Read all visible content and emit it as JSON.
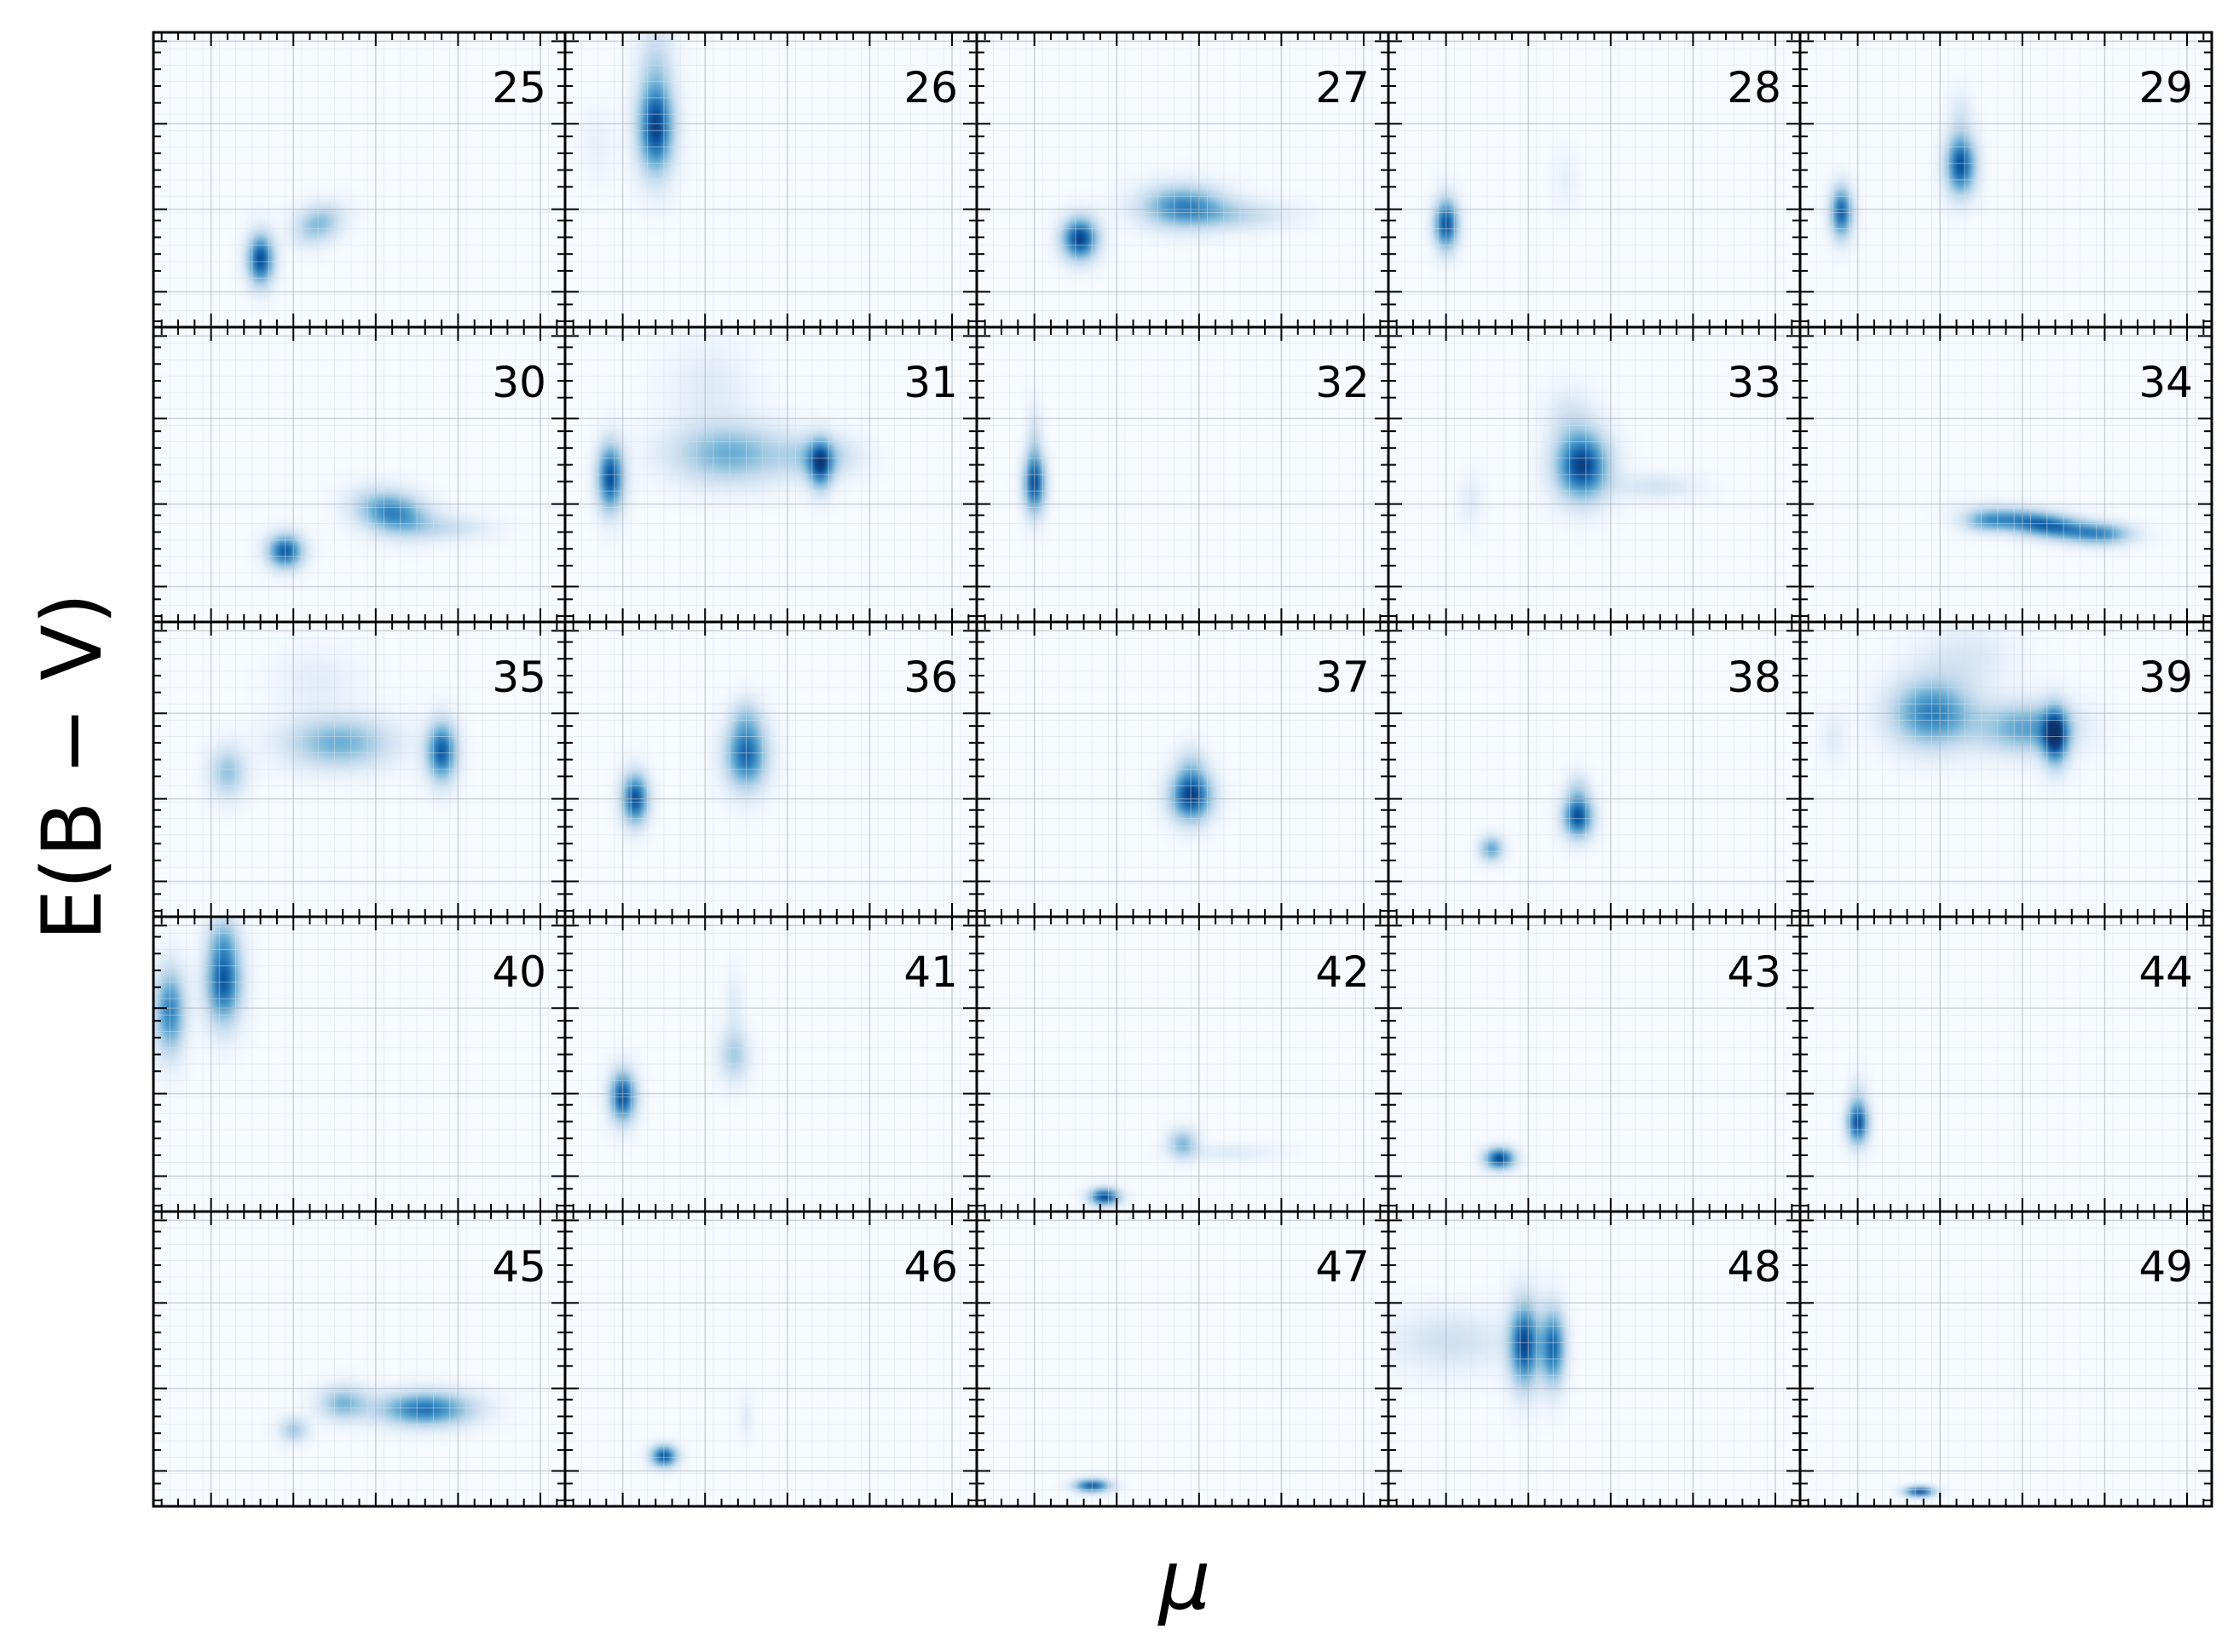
{
  "figure": {
    "xlabel": "μ",
    "ylabel": "E(B − V)"
  },
  "chart_data": {
    "type": "heatmap",
    "layout": {
      "rows": 5,
      "cols": 5
    },
    "xlabel": "μ",
    "ylabel": "E(B − V)",
    "colormap": "Blues",
    "grid": true,
    "tick_labels_shown": false,
    "axis_units": "normalized 0-1 within each panel (x: μ left to right, y: E(B−V) bottom to top); no tick values are printed",
    "panels": [
      {
        "label": "25",
        "blobs": [
          {
            "x": 0.26,
            "y": 0.23,
            "sx": 0.022,
            "sy": 0.06,
            "a": 0.92
          },
          {
            "x": 0.4,
            "y": 0.35,
            "sx": 0.04,
            "sy": 0.045,
            "a": 0.45,
            "tilt": 0.3
          }
        ]
      },
      {
        "label": "26",
        "blobs": [
          {
            "x": 0.22,
            "y": 0.68,
            "sx": 0.03,
            "sy": 0.11,
            "a": 0.95
          },
          {
            "x": 0.22,
            "y": 0.92,
            "sx": 0.03,
            "sy": 0.09,
            "a": 0.2
          },
          {
            "x": 0.08,
            "y": 0.62,
            "sx": 0.03,
            "sy": 0.08,
            "a": 0.08
          }
        ]
      },
      {
        "label": "27",
        "blobs": [
          {
            "x": 0.25,
            "y": 0.3,
            "sx": 0.03,
            "sy": 0.05,
            "a": 0.95
          },
          {
            "x": 0.5,
            "y": 0.41,
            "sx": 0.07,
            "sy": 0.05,
            "a": 0.65
          },
          {
            "x": 0.63,
            "y": 0.38,
            "sx": 0.09,
            "sy": 0.035,
            "a": 0.25
          }
        ]
      },
      {
        "label": "28",
        "blobs": [
          {
            "x": 0.14,
            "y": 0.35,
            "sx": 0.02,
            "sy": 0.06,
            "a": 0.9
          },
          {
            "x": 0.43,
            "y": 0.5,
            "sx": 0.02,
            "sy": 0.07,
            "a": 0.08
          }
        ]
      },
      {
        "label": "29",
        "blobs": [
          {
            "x": 0.1,
            "y": 0.39,
            "sx": 0.018,
            "sy": 0.06,
            "a": 0.85
          },
          {
            "x": 0.39,
            "y": 0.55,
            "sx": 0.025,
            "sy": 0.07,
            "a": 0.9
          },
          {
            "x": 0.39,
            "y": 0.72,
            "sx": 0.02,
            "sy": 0.06,
            "a": 0.15
          }
        ]
      },
      {
        "label": "30",
        "blobs": [
          {
            "x": 0.32,
            "y": 0.24,
            "sx": 0.03,
            "sy": 0.04,
            "a": 0.85
          },
          {
            "x": 0.58,
            "y": 0.37,
            "sx": 0.06,
            "sy": 0.05,
            "a": 0.7,
            "tilt": -0.2
          },
          {
            "x": 0.72,
            "y": 0.32,
            "sx": 0.07,
            "sy": 0.03,
            "a": 0.2
          }
        ]
      },
      {
        "label": "31",
        "blobs": [
          {
            "x": 0.11,
            "y": 0.49,
            "sx": 0.022,
            "sy": 0.08,
            "a": 0.9
          },
          {
            "x": 0.4,
            "y": 0.57,
            "sx": 0.1,
            "sy": 0.07,
            "a": 0.5
          },
          {
            "x": 0.62,
            "y": 0.56,
            "sx": 0.06,
            "sy": 0.05,
            "a": 0.35
          },
          {
            "x": 0.62,
            "y": 0.53,
            "sx": 0.02,
            "sy": 0.06,
            "a": 0.7
          },
          {
            "x": 0.35,
            "y": 0.8,
            "sx": 0.07,
            "sy": 0.1,
            "a": 0.12
          }
        ]
      },
      {
        "label": "32",
        "blobs": [
          {
            "x": 0.14,
            "y": 0.47,
            "sx": 0.018,
            "sy": 0.07,
            "a": 0.9
          },
          {
            "x": 0.14,
            "y": 0.62,
            "sx": 0.012,
            "sy": 0.08,
            "a": 0.2
          }
        ]
      },
      {
        "label": "33",
        "blobs": [
          {
            "x": 0.47,
            "y": 0.53,
            "sx": 0.045,
            "sy": 0.08,
            "a": 0.95
          },
          {
            "x": 0.65,
            "y": 0.46,
            "sx": 0.07,
            "sy": 0.03,
            "a": 0.18
          },
          {
            "x": 0.2,
            "y": 0.41,
            "sx": 0.02,
            "sy": 0.06,
            "a": 0.12
          },
          {
            "x": 0.44,
            "y": 0.7,
            "sx": 0.04,
            "sy": 0.07,
            "a": 0.15
          }
        ]
      },
      {
        "label": "34",
        "blobs": [
          {
            "x": 0.59,
            "y": 0.33,
            "sx": 0.09,
            "sy": 0.03,
            "a": 0.85,
            "tilt": -0.2
          },
          {
            "x": 0.45,
            "y": 0.34,
            "sx": 0.04,
            "sy": 0.025,
            "a": 0.4
          },
          {
            "x": 0.74,
            "y": 0.3,
            "sx": 0.05,
            "sy": 0.025,
            "a": 0.45
          }
        ]
      },
      {
        "label": "35",
        "blobs": [
          {
            "x": 0.18,
            "y": 0.49,
            "sx": 0.03,
            "sy": 0.06,
            "a": 0.4
          },
          {
            "x": 0.45,
            "y": 0.59,
            "sx": 0.09,
            "sy": 0.06,
            "a": 0.5
          },
          {
            "x": 0.7,
            "y": 0.56,
            "sx": 0.025,
            "sy": 0.07,
            "a": 0.85
          },
          {
            "x": 0.4,
            "y": 0.8,
            "sx": 0.07,
            "sy": 0.08,
            "a": 0.1
          }
        ]
      },
      {
        "label": "36",
        "blobs": [
          {
            "x": 0.17,
            "y": 0.4,
            "sx": 0.022,
            "sy": 0.06,
            "a": 0.9
          },
          {
            "x": 0.44,
            "y": 0.55,
            "sx": 0.035,
            "sy": 0.08,
            "a": 0.8
          },
          {
            "x": 0.44,
            "y": 0.68,
            "sx": 0.025,
            "sy": 0.05,
            "a": 0.2
          }
        ]
      },
      {
        "label": "37",
        "blobs": [
          {
            "x": 0.52,
            "y": 0.41,
            "sx": 0.035,
            "sy": 0.06,
            "a": 0.95
          },
          {
            "x": 0.52,
            "y": 0.52,
            "sx": 0.025,
            "sy": 0.05,
            "a": 0.2
          }
        ]
      },
      {
        "label": "38",
        "blobs": [
          {
            "x": 0.25,
            "y": 0.23,
            "sx": 0.02,
            "sy": 0.03,
            "a": 0.55
          },
          {
            "x": 0.46,
            "y": 0.34,
            "sx": 0.025,
            "sy": 0.05,
            "a": 0.9
          },
          {
            "x": 0.46,
            "y": 0.44,
            "sx": 0.02,
            "sy": 0.04,
            "a": 0.2
          }
        ]
      },
      {
        "label": "39",
        "blobs": [
          {
            "x": 0.32,
            "y": 0.69,
            "sx": 0.07,
            "sy": 0.08,
            "a": 0.7
          },
          {
            "x": 0.55,
            "y": 0.64,
            "sx": 0.08,
            "sy": 0.06,
            "a": 0.55
          },
          {
            "x": 0.62,
            "y": 0.61,
            "sx": 0.022,
            "sy": 0.07,
            "a": 0.85
          },
          {
            "x": 0.08,
            "y": 0.61,
            "sx": 0.02,
            "sy": 0.06,
            "a": 0.12
          },
          {
            "x": 0.4,
            "y": 0.88,
            "sx": 0.08,
            "sy": 0.07,
            "a": 0.15
          }
        ]
      },
      {
        "label": "40",
        "blobs": [
          {
            "x": 0.04,
            "y": 0.68,
            "sx": 0.025,
            "sy": 0.1,
            "a": 0.7
          },
          {
            "x": 0.17,
            "y": 0.78,
            "sx": 0.03,
            "sy": 0.1,
            "a": 0.85
          },
          {
            "x": 0.17,
            "y": 0.93,
            "sx": 0.025,
            "sy": 0.06,
            "a": 0.25
          }
        ]
      },
      {
        "label": "41",
        "blobs": [
          {
            "x": 0.14,
            "y": 0.39,
            "sx": 0.022,
            "sy": 0.06,
            "a": 0.9
          },
          {
            "x": 0.41,
            "y": 0.53,
            "sx": 0.025,
            "sy": 0.06,
            "a": 0.35
          },
          {
            "x": 0.41,
            "y": 0.7,
            "sx": 0.015,
            "sy": 0.08,
            "a": 0.12
          }
        ]
      },
      {
        "label": "42",
        "blobs": [
          {
            "x": 0.31,
            "y": 0.05,
            "sx": 0.025,
            "sy": 0.02,
            "a": 0.95
          },
          {
            "x": 0.5,
            "y": 0.23,
            "sx": 0.025,
            "sy": 0.035,
            "a": 0.45
          },
          {
            "x": 0.62,
            "y": 0.2,
            "sx": 0.08,
            "sy": 0.02,
            "a": 0.12
          }
        ]
      },
      {
        "label": "43",
        "blobs": [
          {
            "x": 0.27,
            "y": 0.18,
            "sx": 0.025,
            "sy": 0.025,
            "a": 0.95
          }
        ]
      },
      {
        "label": "44",
        "blobs": [
          {
            "x": 0.14,
            "y": 0.3,
            "sx": 0.018,
            "sy": 0.05,
            "a": 0.9
          },
          {
            "x": 0.14,
            "y": 0.4,
            "sx": 0.015,
            "sy": 0.05,
            "a": 0.15
          }
        ]
      },
      {
        "label": "45",
        "blobs": [
          {
            "x": 0.34,
            "y": 0.26,
            "sx": 0.025,
            "sy": 0.03,
            "a": 0.35
          },
          {
            "x": 0.46,
            "y": 0.35,
            "sx": 0.04,
            "sy": 0.04,
            "a": 0.45
          },
          {
            "x": 0.66,
            "y": 0.33,
            "sx": 0.08,
            "sy": 0.04,
            "a": 0.75
          }
        ]
      },
      {
        "label": "46",
        "blobs": [
          {
            "x": 0.24,
            "y": 0.17,
            "sx": 0.022,
            "sy": 0.025,
            "a": 0.9
          },
          {
            "x": 0.44,
            "y": 0.3,
            "sx": 0.01,
            "sy": 0.05,
            "a": 0.12
          }
        ]
      },
      {
        "label": "47",
        "blobs": [
          {
            "x": 0.28,
            "y": 0.07,
            "sx": 0.03,
            "sy": 0.015,
            "a": 0.9
          }
        ]
      },
      {
        "label": "48",
        "blobs": [
          {
            "x": 0.33,
            "y": 0.55,
            "sx": 0.025,
            "sy": 0.1,
            "a": 0.9
          },
          {
            "x": 0.4,
            "y": 0.54,
            "sx": 0.02,
            "sy": 0.09,
            "a": 0.8
          },
          {
            "x": 0.15,
            "y": 0.56,
            "sx": 0.1,
            "sy": 0.07,
            "a": 0.2
          }
        ]
      },
      {
        "label": "49",
        "blobs": [
          {
            "x": 0.29,
            "y": 0.05,
            "sx": 0.025,
            "sy": 0.012,
            "a": 0.95
          }
        ]
      }
    ]
  }
}
